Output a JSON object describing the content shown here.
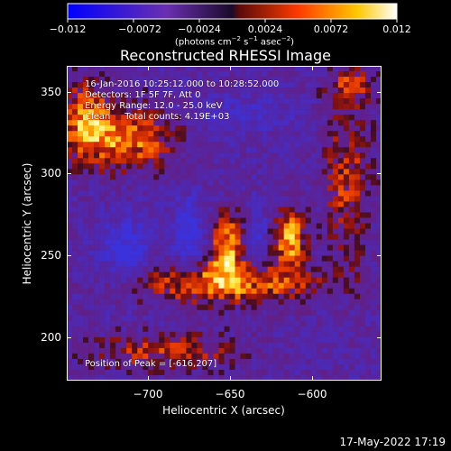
{
  "colorbar": {
    "tick_labels": [
      "−0.012",
      "−0.0072",
      "−0.0024",
      "0.0024",
      "0.0072",
      "0.012"
    ],
    "colors": [
      "#0000ff",
      "#6a2fb0",
      "#3a1b5c",
      "#7a0f0f",
      "#ff5a00",
      "#ffd000",
      "#ffffff"
    ]
  },
  "units": {
    "prefix": "(photons cm",
    "exp1": "−2",
    "mid1": " s",
    "exp2": "−1",
    "mid2": " asec",
    "exp3": "−2",
    "suffix": ")"
  },
  "title": "Reconstructed RHESSI Image",
  "info": {
    "time": "16-Jan-2016 10:25:12.000 to 10:28:52.000",
    "detectors": "Detectors: 1F 5F 7F, Att 0",
    "energy": "Energy Range: 12.0 - 25.0 keV",
    "clean": "Clean     Total counts: 4.19E+03",
    "peak": "Position of Peak = [-616,207]"
  },
  "axes": {
    "xlabel": "Heliocentric X (arcsec)",
    "ylabel": "Heliocentric Y (arcsec)",
    "xticks": [
      "−700",
      "−650",
      "−600"
    ],
    "yticks": [
      "350",
      "300",
      "250",
      "200"
    ],
    "xlim": [
      -750,
      -590
    ],
    "ylim": [
      175,
      370
    ]
  },
  "footer": {
    "date": "17-May-2022 17:19"
  }
}
